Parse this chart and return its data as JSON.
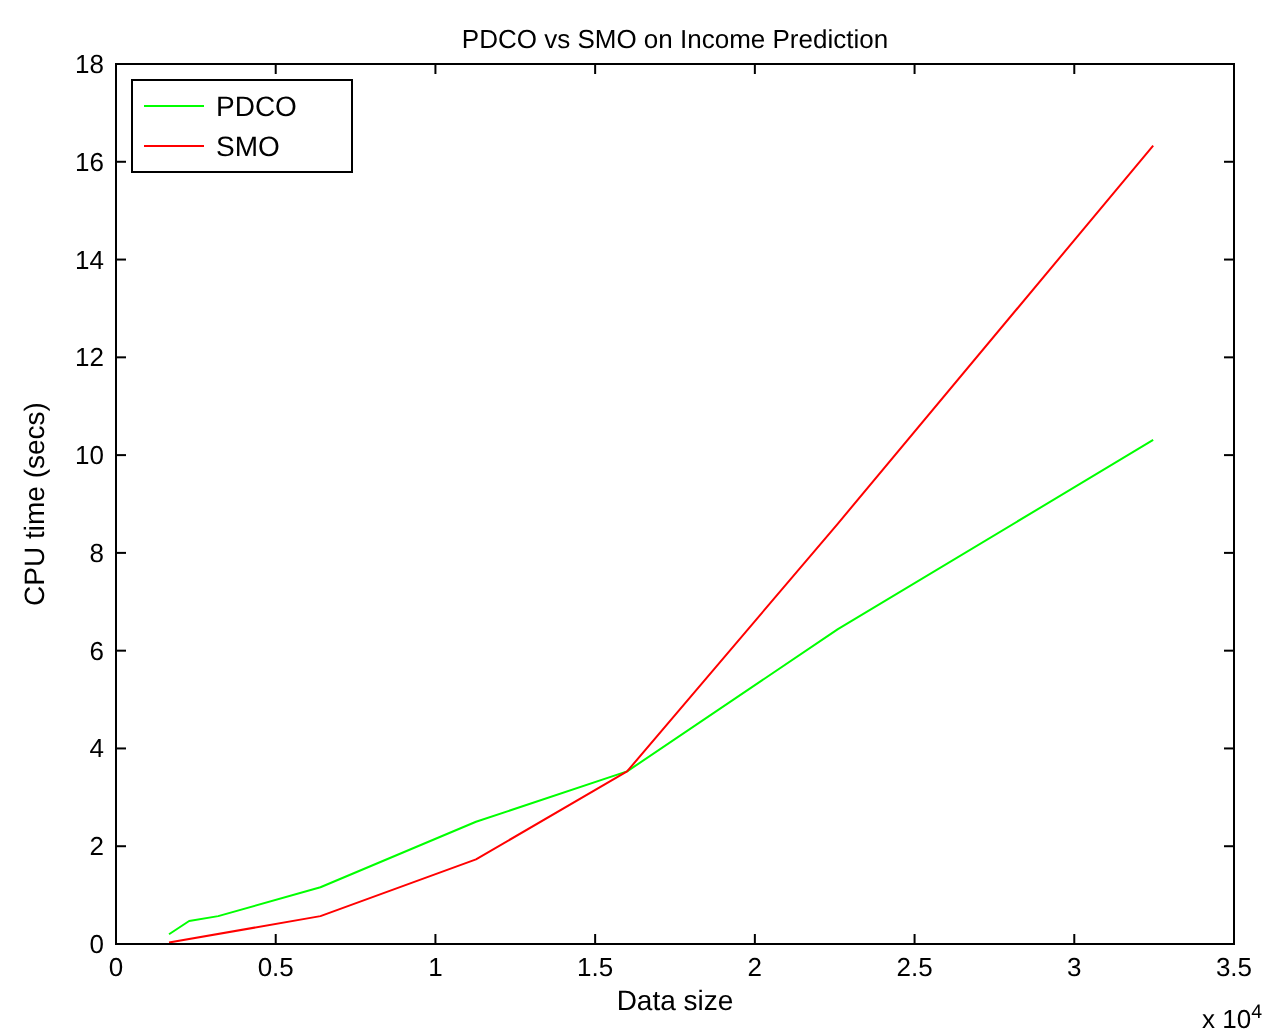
{
  "chart_data": {
    "type": "line",
    "title": "PDCO vs SMO on Income Prediction",
    "xlabel": "Data size",
    "ylabel": "CPU time (secs)",
    "x": [
      0.166,
      0.229,
      0.32,
      0.64,
      1.127,
      1.6,
      2.26,
      3.247
    ],
    "series": [
      {
        "name": "PDCO",
        "color": "#00ff00",
        "values": [
          0.2,
          0.47,
          0.57,
          1.16,
          2.5,
          3.53,
          6.44,
          10.31
        ]
      },
      {
        "name": "SMO",
        "color": "#ff0000",
        "values": [
          0.03,
          null,
          null,
          0.57,
          1.73,
          3.53,
          8.6,
          16.33
        ]
      }
    ],
    "xlim": [
      0,
      3.5
    ],
    "xticks": [
      0,
      0.5,
      1,
      1.5,
      2,
      2.5,
      3,
      3.5
    ],
    "ylim": [
      0,
      18
    ],
    "yticks": [
      0,
      2,
      4,
      6,
      8,
      10,
      12,
      14,
      16,
      18
    ],
    "annotations": [
      "x 10$^{4}$"
    ],
    "legend": "top left",
    "grid": false,
    "marker": "none",
    "line_style": "solid"
  }
}
